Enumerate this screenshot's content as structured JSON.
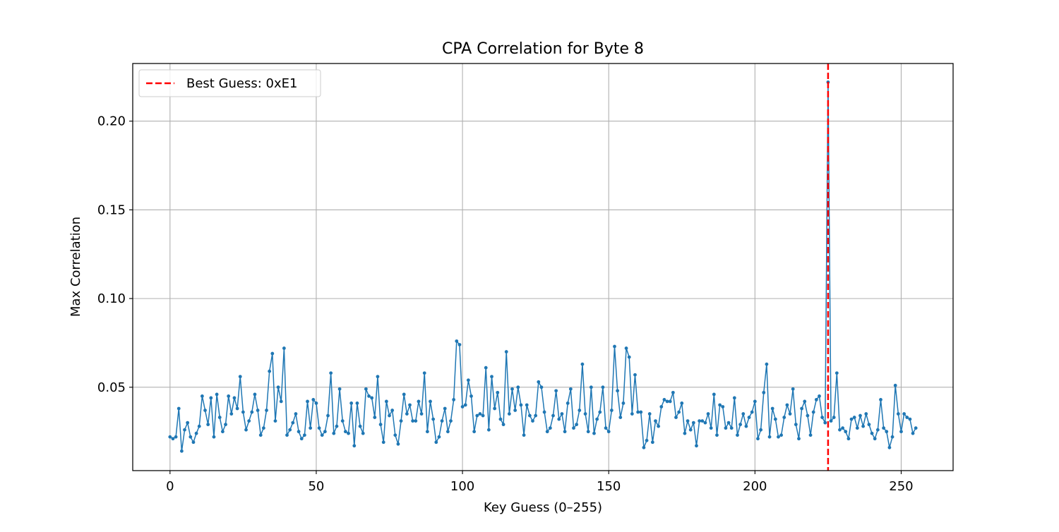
{
  "chart_data": {
    "type": "line",
    "title": "CPA Correlation for Byte 8",
    "xlabel": "Key Guess (0–255)",
    "ylabel": "Max Correlation",
    "xlim": [
      -12.75,
      267.75
    ],
    "ylim": [
      0.003,
      0.2325
    ],
    "xticks": [
      0,
      50,
      100,
      150,
      200,
      250
    ],
    "yticks": [
      0.05,
      0.1,
      0.15,
      0.2
    ],
    "xtick_labels": [
      "0",
      "50",
      "100",
      "150",
      "200",
      "250"
    ],
    "ytick_labels": [
      "0.05",
      "0.10",
      "0.15",
      "0.20"
    ],
    "grid": true,
    "legend": {
      "position": "upper-left",
      "entries": [
        "Best Guess: 0xE1"
      ]
    },
    "series": [
      {
        "color": "#1f77b4",
        "marker": "point",
        "y": [
          0.022,
          0.021,
          0.022,
          0.038,
          0.014,
          0.026,
          0.03,
          0.022,
          0.019,
          0.024,
          0.028,
          0.045,
          0.037,
          0.029,
          0.044,
          0.022,
          0.046,
          0.033,
          0.025,
          0.029,
          0.045,
          0.035,
          0.044,
          0.038,
          0.056,
          0.036,
          0.026,
          0.031,
          0.036,
          0.046,
          0.037,
          0.023,
          0.027,
          0.037,
          0.059,
          0.069,
          0.031,
          0.05,
          0.042,
          0.072,
          0.023,
          0.026,
          0.03,
          0.035,
          0.025,
          0.021,
          0.023,
          0.042,
          0.027,
          0.043,
          0.041,
          0.027,
          0.023,
          0.025,
          0.034,
          0.058,
          0.024,
          0.028,
          0.049,
          0.031,
          0.025,
          0.024,
          0.041,
          0.017,
          0.041,
          0.028,
          0.024,
          0.049,
          0.045,
          0.044,
          0.033,
          0.056,
          0.029,
          0.019,
          0.042,
          0.034,
          0.037,
          0.023,
          0.018,
          0.031,
          0.046,
          0.035,
          0.04,
          0.031,
          0.031,
          0.042,
          0.035,
          0.058,
          0.025,
          0.042,
          0.032,
          0.019,
          0.022,
          0.031,
          0.038,
          0.025,
          0.031,
          0.043,
          0.076,
          0.074,
          0.039,
          0.04,
          0.054,
          0.045,
          0.025,
          0.034,
          0.035,
          0.034,
          0.061,
          0.026,
          0.056,
          0.038,
          0.047,
          0.032,
          0.029,
          0.07,
          0.035,
          0.049,
          0.037,
          0.05,
          0.04,
          0.023,
          0.04,
          0.034,
          0.031,
          0.034,
          0.053,
          0.05,
          0.036,
          0.025,
          0.027,
          0.034,
          0.048,
          0.032,
          0.035,
          0.025,
          0.041,
          0.049,
          0.027,
          0.029,
          0.037,
          0.063,
          0.035,
          0.025,
          0.05,
          0.024,
          0.032,
          0.036,
          0.05,
          0.027,
          0.025,
          0.037,
          0.073,
          0.048,
          0.033,
          0.041,
          0.072,
          0.067,
          0.035,
          0.057,
          0.036,
          0.036,
          0.016,
          0.02,
          0.035,
          0.019,
          0.031,
          0.028,
          0.039,
          0.043,
          0.042,
          0.042,
          0.047,
          0.033,
          0.036,
          0.041,
          0.024,
          0.031,
          0.026,
          0.03,
          0.017,
          0.031,
          0.031,
          0.03,
          0.035,
          0.027,
          0.046,
          0.023,
          0.04,
          0.039,
          0.027,
          0.03,
          0.027,
          0.044,
          0.023,
          0.029,
          0.035,
          0.028,
          0.033,
          0.036,
          0.042,
          0.021,
          0.026,
          0.047,
          0.063,
          0.022,
          0.038,
          0.032,
          0.022,
          0.023,
          0.033,
          0.04,
          0.035,
          0.049,
          0.029,
          0.021,
          0.038,
          0.042,
          0.034,
          0.023,
          0.036,
          0.043,
          0.045,
          0.033,
          0.03,
          0.222,
          0.031,
          0.033,
          0.058,
          0.026,
          0.027,
          0.025,
          0.021,
          0.032,
          0.033,
          0.027,
          0.034,
          0.028,
          0.035,
          0.029,
          0.024,
          0.021,
          0.026,
          0.043,
          0.027,
          0.025,
          0.016,
          0.022,
          0.051,
          0.035,
          0.025,
          0.035,
          0.033,
          0.032,
          0.024,
          0.027
        ]
      },
      {
        "name": "Best Guess: 0xE1",
        "type": "vline",
        "x": 225,
        "color": "#ff0000",
        "style": "dashed"
      }
    ]
  }
}
